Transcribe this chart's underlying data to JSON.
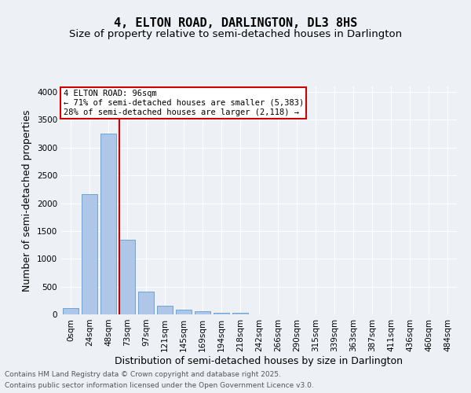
{
  "title": "4, ELTON ROAD, DARLINGTON, DL3 8HS",
  "subtitle": "Size of property relative to semi-detached houses in Darlington",
  "xlabel": "Distribution of semi-detached houses by size in Darlington",
  "ylabel": "Number of semi-detached properties",
  "footer_line1": "Contains HM Land Registry data © Crown copyright and database right 2025.",
  "footer_line2": "Contains public sector information licensed under the Open Government Licence v3.0.",
  "bins": [
    "0sqm",
    "24sqm",
    "48sqm",
    "73sqm",
    "97sqm",
    "121sqm",
    "145sqm",
    "169sqm",
    "194sqm",
    "218sqm",
    "242sqm",
    "266sqm",
    "290sqm",
    "315sqm",
    "339sqm",
    "363sqm",
    "387sqm",
    "411sqm",
    "436sqm",
    "460sqm",
    "484sqm"
  ],
  "values": [
    110,
    2170,
    3250,
    1340,
    405,
    155,
    85,
    50,
    35,
    25,
    0,
    0,
    0,
    0,
    0,
    0,
    0,
    0,
    0,
    0,
    0
  ],
  "bar_color": "#aec6e8",
  "bar_edge_color": "#5b9bd5",
  "annotation_title": "4 ELTON ROAD: 96sqm",
  "annotation_line2": "← 71% of semi-detached houses are smaller (5,383)",
  "annotation_line3": "28% of semi-detached houses are larger (2,118) →",
  "vline_color": "#cc0000",
  "vline_x": 2.6,
  "ylim": [
    0,
    4100
  ],
  "yticks": [
    0,
    500,
    1000,
    1500,
    2000,
    2500,
    3000,
    3500,
    4000
  ],
  "background_color": "#edf0f5",
  "plot_background": "#edf0f5",
  "grid_color": "#ffffff",
  "annotation_box_color": "#ffffff",
  "annotation_box_edge": "#cc0000",
  "title_fontsize": 11,
  "subtitle_fontsize": 9.5,
  "label_fontsize": 9,
  "tick_fontsize": 7.5,
  "footer_fontsize": 6.5
}
